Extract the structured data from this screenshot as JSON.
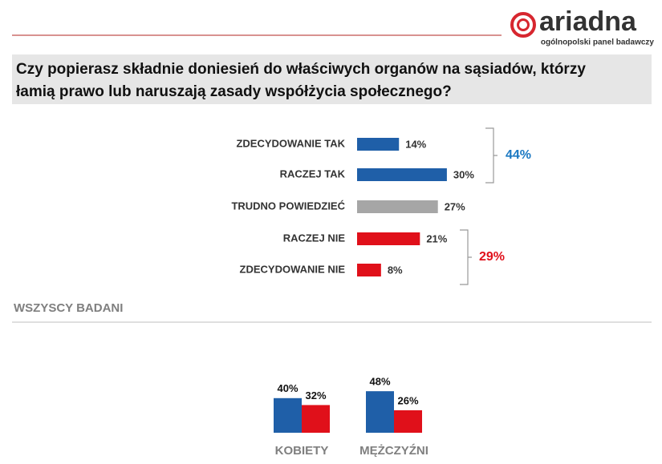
{
  "header": {
    "logo": "ariadna",
    "tagline": "ogólnopolski panel badawczy"
  },
  "question": [
    "Czy popierasz składnie doniesień do właściwych organów na sąsiadów, którzy",
    "łamią prawo lub naruszają zasady współżycia społecznego?"
  ],
  "chart_data": [
    {
      "type": "hbar",
      "caption": "WSZYSCY BADANI",
      "categories": [
        "ZDECYDOWANIE TAK",
        "RACZEJ TAK",
        "TRUDNO POWIEDZIEĆ",
        "RACZEJ NIE",
        "ZDECYDOWANIE NIE"
      ],
      "values": [
        14,
        30,
        27,
        21,
        8
      ],
      "value_labels": [
        "14%",
        "30%",
        "27%",
        "21%",
        "8%"
      ],
      "colors": [
        "#1f5fa8",
        "#1f5fa8",
        "#a6a6a6",
        "#e0101a",
        "#e0101a"
      ],
      "totals": [
        {
          "value": 44,
          "label": "44%",
          "color": "#1a78c2"
        },
        {
          "value": 29,
          "label": "29%",
          "color": "#e0101a"
        }
      ]
    },
    {
      "type": "bar",
      "categories": [
        "KOBIETY",
        "MĘŻCZYŹNI"
      ],
      "series": [
        {
          "color": "#1f5fa8",
          "values": [
            40,
            48
          ],
          "value_labels": [
            "40%",
            "48%"
          ]
        },
        {
          "color": "#e0101a",
          "values": [
            32,
            26
          ],
          "value_labels": [
            "32%",
            "26%"
          ]
        }
      ]
    }
  ]
}
